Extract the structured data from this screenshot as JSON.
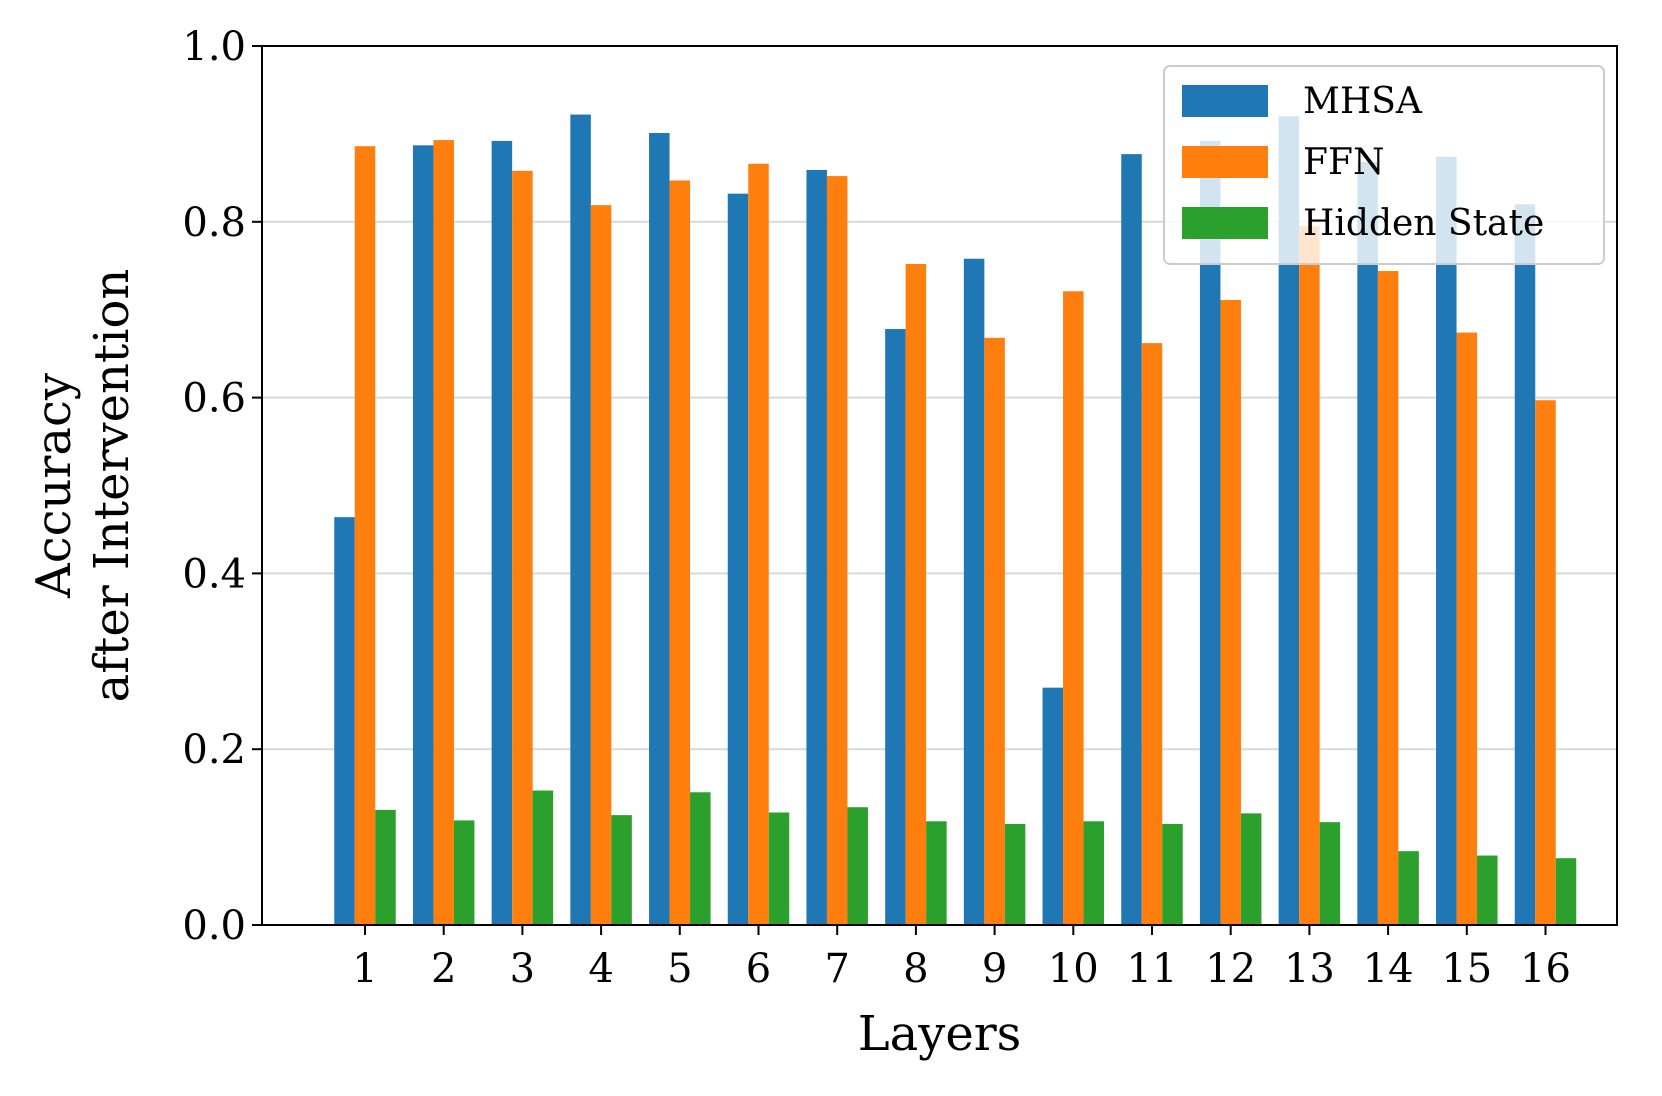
{
  "chart_data": {
    "type": "bar",
    "categories": [
      "1",
      "2",
      "3",
      "4",
      "5",
      "6",
      "7",
      "8",
      "9",
      "10",
      "11",
      "12",
      "13",
      "14",
      "15",
      "16"
    ],
    "series": [
      {
        "name": "MHSA",
        "color": "#1f77b4",
        "values": [
          0.464,
          0.887,
          0.892,
          0.922,
          0.901,
          0.832,
          0.859,
          0.678,
          0.758,
          0.27,
          0.877,
          0.892,
          0.92,
          0.868,
          0.874,
          0.82
        ]
      },
      {
        "name": "FFN",
        "color": "#ff7f0e",
        "values": [
          0.886,
          0.893,
          0.858,
          0.819,
          0.847,
          0.866,
          0.852,
          0.752,
          0.668,
          0.721,
          0.662,
          0.711,
          0.795,
          0.744,
          0.674,
          0.597
        ]
      },
      {
        "name": "Hidden State",
        "color": "#2ca02c",
        "values": [
          0.131,
          0.119,
          0.153,
          0.125,
          0.151,
          0.128,
          0.134,
          0.118,
          0.115,
          0.118,
          0.115,
          0.127,
          0.117,
          0.084,
          0.079,
          0.076
        ]
      }
    ],
    "xlabel": "Layers",
    "ylabel_lines": [
      "Accuracy",
      "after Intervention"
    ],
    "ylim": [
      0,
      1.0
    ],
    "yticks": [
      "0.0",
      "0.2",
      "0.4",
      "0.6",
      "0.8",
      "1.0"
    ],
    "grid": "y",
    "legend_position": "top-right"
  }
}
